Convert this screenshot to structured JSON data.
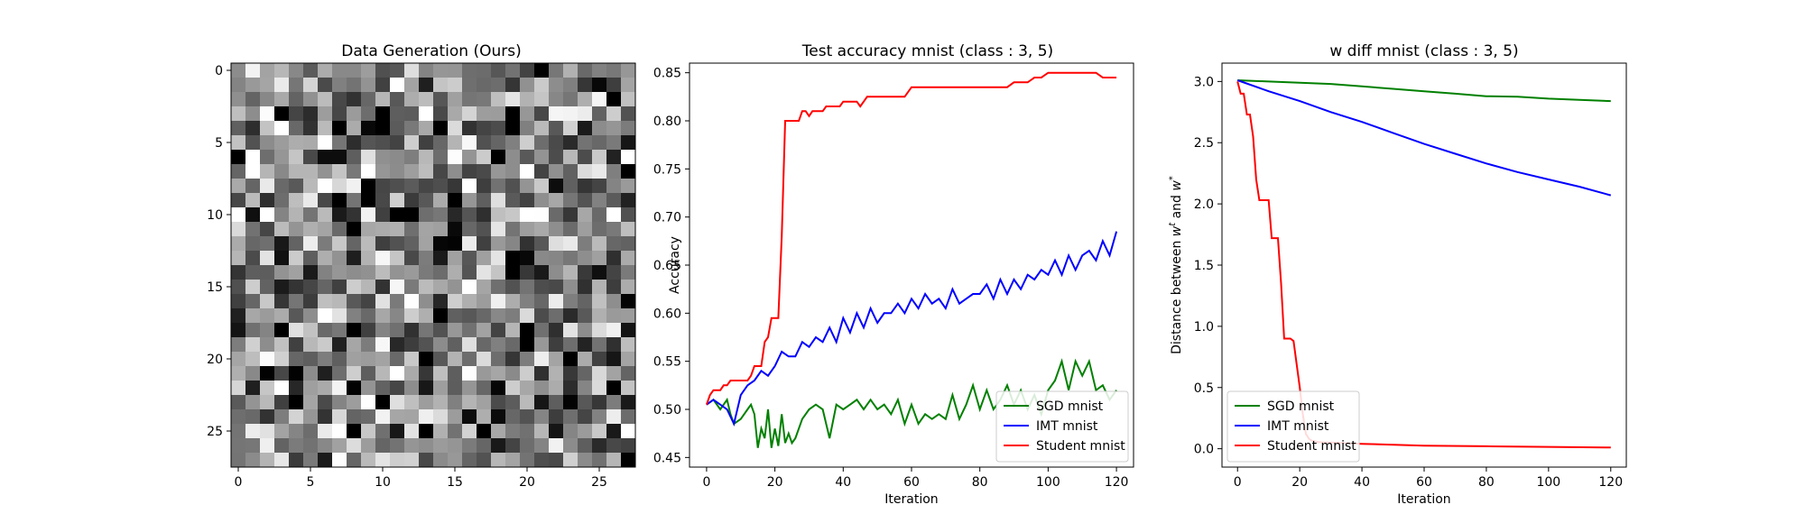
{
  "chart_data": [
    {
      "type": "heatmap",
      "title": "Data Generation (Ours)",
      "colormap": "gray",
      "rows": 28,
      "cols": 28,
      "xticks": [
        "0",
        "5",
        "10",
        "15",
        "20",
        "25"
      ],
      "yticks": [
        "0",
        "5",
        "10",
        "15",
        "20",
        "25"
      ],
      "value_range": [
        0,
        1
      ],
      "notable_pixels": [
        {
          "row": 3,
          "col": 10,
          "value": 0.0
        },
        {
          "row": 10,
          "col": 12,
          "value": 0.0
        },
        {
          "row": 8,
          "col": 16,
          "value": 1.0
        },
        {
          "row": 6,
          "col": 6,
          "value": 0.05
        },
        {
          "row": 24,
          "col": 10,
          "value": 0.95
        }
      ]
    },
    {
      "type": "line",
      "title": "Test accuracy mnist (class : 3, 5)",
      "xlabel": "Iteration",
      "ylabel": "Accuracy",
      "xlim": [
        -5,
        125
      ],
      "ylim": [
        0.44,
        0.86
      ],
      "xticks": [
        0,
        20,
        40,
        60,
        80,
        100,
        120
      ],
      "yticks": [
        0.45,
        0.5,
        0.55,
        0.6,
        0.65,
        0.7,
        0.75,
        0.8,
        0.85
      ],
      "legend": "lower-right",
      "series": [
        {
          "name": "SGD mnist",
          "color": "#008000",
          "x": [
            0,
            2,
            4,
            6,
            7,
            8,
            10,
            12,
            13,
            14,
            15,
            16,
            17,
            18,
            19,
            20,
            21,
            22,
            23,
            24,
            25,
            26,
            28,
            30,
            32,
            34,
            36,
            38,
            40,
            42,
            44,
            46,
            48,
            50,
            52,
            54,
            56,
            58,
            60,
            62,
            64,
            66,
            68,
            70,
            72,
            74,
            76,
            78,
            80,
            82,
            84,
            86,
            88,
            90,
            92,
            94,
            96,
            98,
            100,
            102,
            104,
            106,
            108,
            110,
            112,
            114,
            116,
            118,
            120
          ],
          "values": [
            0.505,
            0.51,
            0.5,
            0.51,
            0.495,
            0.485,
            0.49,
            0.5,
            0.505,
            0.495,
            0.46,
            0.48,
            0.47,
            0.5,
            0.46,
            0.48,
            0.462,
            0.495,
            0.465,
            0.475,
            0.465,
            0.47,
            0.49,
            0.5,
            0.505,
            0.5,
            0.47,
            0.505,
            0.5,
            0.505,
            0.51,
            0.5,
            0.51,
            0.5,
            0.505,
            0.495,
            0.51,
            0.485,
            0.505,
            0.485,
            0.495,
            0.49,
            0.495,
            0.49,
            0.515,
            0.49,
            0.505,
            0.525,
            0.5,
            0.52,
            0.5,
            0.51,
            0.525,
            0.505,
            0.52,
            0.5,
            0.515,
            0.495,
            0.52,
            0.53,
            0.55,
            0.52,
            0.55,
            0.535,
            0.55,
            0.52,
            0.525,
            0.51,
            0.52
          ]
        },
        {
          "name": "IMT mnist",
          "color": "#0000ff",
          "x": [
            0,
            2,
            4,
            6,
            8,
            10,
            12,
            14,
            16,
            18,
            20,
            22,
            24,
            26,
            28,
            30,
            32,
            34,
            36,
            38,
            40,
            42,
            44,
            46,
            48,
            50,
            52,
            54,
            56,
            58,
            60,
            62,
            64,
            66,
            68,
            70,
            72,
            74,
            76,
            78,
            80,
            82,
            84,
            86,
            88,
            90,
            92,
            94,
            96,
            98,
            100,
            102,
            104,
            106,
            108,
            110,
            112,
            114,
            116,
            118,
            120
          ],
          "values": [
            0.505,
            0.51,
            0.505,
            0.5,
            0.485,
            0.515,
            0.525,
            0.53,
            0.54,
            0.535,
            0.545,
            0.56,
            0.555,
            0.555,
            0.57,
            0.565,
            0.575,
            0.57,
            0.585,
            0.57,
            0.595,
            0.58,
            0.6,
            0.585,
            0.605,
            0.59,
            0.6,
            0.6,
            0.61,
            0.6,
            0.615,
            0.605,
            0.62,
            0.61,
            0.615,
            0.605,
            0.625,
            0.61,
            0.615,
            0.62,
            0.62,
            0.63,
            0.615,
            0.635,
            0.62,
            0.635,
            0.625,
            0.64,
            0.635,
            0.645,
            0.64,
            0.655,
            0.64,
            0.66,
            0.645,
            0.66,
            0.665,
            0.655,
            0.675,
            0.66,
            0.685
          ]
        },
        {
          "name": "Student mnist",
          "color": "#ff0000",
          "x": [
            0,
            1,
            2,
            3,
            4,
            5,
            6,
            7,
            8,
            9,
            10,
            11,
            12,
            13,
            14,
            15,
            16,
            17,
            18,
            19,
            20,
            21,
            22,
            23,
            24,
            25,
            26,
            27,
            28,
            29,
            30,
            31,
            32,
            33,
            34,
            35,
            36,
            37,
            38,
            39,
            40,
            41,
            42,
            43,
            44,
            45,
            46,
            47,
            48,
            50,
            52,
            54,
            56,
            58,
            60,
            62,
            64,
            66,
            68,
            70,
            72,
            74,
            76,
            78,
            80,
            82,
            84,
            86,
            88,
            90,
            92,
            94,
            96,
            98,
            100,
            102,
            104,
            106,
            108,
            110,
            112,
            114,
            116,
            118,
            120
          ],
          "values": [
            0.505,
            0.515,
            0.52,
            0.52,
            0.52,
            0.525,
            0.525,
            0.53,
            0.53,
            0.53,
            0.53,
            0.53,
            0.53,
            0.535,
            0.545,
            0.545,
            0.545,
            0.57,
            0.575,
            0.595,
            0.595,
            0.595,
            0.68,
            0.8,
            0.8,
            0.8,
            0.8,
            0.8,
            0.81,
            0.81,
            0.805,
            0.81,
            0.81,
            0.81,
            0.81,
            0.815,
            0.815,
            0.815,
            0.815,
            0.815,
            0.82,
            0.82,
            0.82,
            0.82,
            0.82,
            0.815,
            0.82,
            0.825,
            0.825,
            0.825,
            0.825,
            0.825,
            0.825,
            0.825,
            0.835,
            0.835,
            0.835,
            0.835,
            0.835,
            0.835,
            0.835,
            0.835,
            0.835,
            0.835,
            0.835,
            0.835,
            0.835,
            0.835,
            0.835,
            0.84,
            0.84,
            0.84,
            0.845,
            0.845,
            0.85,
            0.85,
            0.85,
            0.85,
            0.85,
            0.85,
            0.85,
            0.85,
            0.845,
            0.845,
            0.845
          ]
        }
      ]
    },
    {
      "type": "line",
      "title": "w diff mnist (class : 3, 5)",
      "xlabel": "Iteration",
      "ylabel": "Distance between w^t and w^*",
      "xlim": [
        -5,
        125
      ],
      "ylim": [
        -0.15,
        3.15
      ],
      "xticks": [
        0,
        20,
        40,
        60,
        80,
        100,
        120
      ],
      "yticks": [
        0.0,
        0.5,
        1.0,
        1.5,
        2.0,
        2.5,
        3.0
      ],
      "legend": "lower-left",
      "series": [
        {
          "name": "SGD mnist",
          "color": "#008000",
          "x": [
            0,
            10,
            20,
            30,
            40,
            50,
            60,
            70,
            80,
            90,
            100,
            110,
            120
          ],
          "values": [
            3.01,
            3.0,
            2.99,
            2.98,
            2.96,
            2.94,
            2.92,
            2.9,
            2.88,
            2.875,
            2.86,
            2.85,
            2.84
          ]
        },
        {
          "name": "IMT mnist",
          "color": "#0000ff",
          "x": [
            0,
            10,
            20,
            30,
            40,
            50,
            60,
            70,
            80,
            90,
            100,
            110,
            120
          ],
          "values": [
            3.01,
            2.92,
            2.84,
            2.75,
            2.67,
            2.58,
            2.49,
            2.41,
            2.33,
            2.26,
            2.2,
            2.14,
            2.07
          ]
        },
        {
          "name": "Student mnist",
          "color": "#ff0000",
          "x": [
            0,
            1,
            2,
            3,
            4,
            5,
            6,
            7,
            8,
            10,
            11,
            12,
            13,
            14,
            15,
            16,
            17,
            18,
            20,
            21,
            22,
            23,
            24,
            25,
            26,
            30,
            40,
            60,
            80,
            100,
            120
          ],
          "values": [
            3.0,
            2.9,
            2.9,
            2.73,
            2.73,
            2.55,
            2.2,
            2.03,
            2.03,
            2.03,
            1.72,
            1.72,
            1.72,
            1.35,
            0.9,
            0.9,
            0.9,
            0.88,
            0.5,
            0.28,
            0.12,
            0.08,
            0.065,
            0.06,
            0.055,
            0.05,
            0.04,
            0.025,
            0.02,
            0.015,
            0.01
          ]
        }
      ]
    }
  ]
}
